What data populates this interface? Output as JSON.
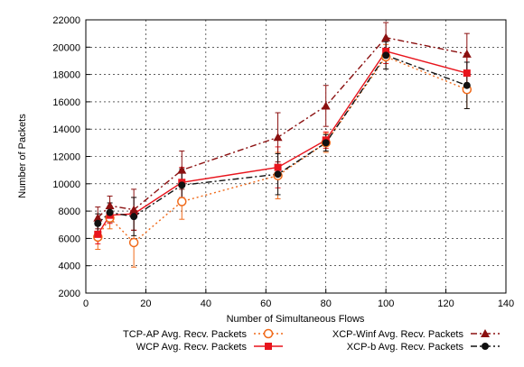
{
  "chart_data": {
    "type": "line",
    "xlabel": "Number of Simultaneous Flows",
    "ylabel": "Number of Packets",
    "xlim": [
      0,
      140
    ],
    "ylim": [
      2000,
      22000
    ],
    "xticks": [
      0,
      20,
      40,
      60,
      80,
      100,
      120,
      140
    ],
    "yticks": [
      2000,
      4000,
      6000,
      8000,
      10000,
      12000,
      14000,
      16000,
      18000,
      20000,
      22000
    ],
    "grid": true,
    "legend_position": "bottom",
    "series": [
      {
        "name": "TCP-AP Avg. Recv. Packets",
        "color": "#f06a1a",
        "line_style": "dotted",
        "marker": "open-circle",
        "x": [
          4,
          8,
          16,
          32,
          64,
          80,
          100,
          127
        ],
        "y": [
          6100,
          7500,
          5700,
          8700,
          10600,
          13000,
          19300,
          16900
        ],
        "err": [
          900,
          800,
          1800,
          1300,
          1700,
          700,
          900,
          1400
        ]
      },
      {
        "name": "WCP Avg. Recv. Packets",
        "color": "#e8141c",
        "line_style": "solid",
        "marker": "square",
        "x": [
          4,
          8,
          16,
          32,
          64,
          80,
          100,
          127
        ],
        "y": [
          6300,
          7700,
          7800,
          10100,
          11200,
          13200,
          19700,
          18100
        ],
        "err": [
          700,
          600,
          1200,
          1100,
          1500,
          600,
          900,
          1200
        ]
      },
      {
        "name": "XCP-Winf Avg. Recv. Packets",
        "color": "#8b1010",
        "line_style": "dashdot",
        "marker": "triangle",
        "x": [
          4,
          8,
          16,
          32,
          64,
          80,
          100,
          127
        ],
        "y": [
          7500,
          8400,
          8100,
          11000,
          13400,
          15700,
          20700,
          19500
        ],
        "err": [
          800,
          700,
          1500,
          1400,
          1800,
          1500,
          1100,
          1500
        ]
      },
      {
        "name": "XCP-b Avg. Recv. Packets",
        "color": "#111111",
        "line_style": "dashdot",
        "marker": "filled-circle",
        "x": [
          4,
          8,
          16,
          32,
          64,
          80,
          100,
          127
        ],
        "y": [
          7100,
          7900,
          7600,
          9900,
          10700,
          13000,
          19400,
          17200
        ],
        "err": [
          700,
          700,
          1400,
          1200,
          1500,
          600,
          1000,
          1700
        ]
      }
    ]
  }
}
